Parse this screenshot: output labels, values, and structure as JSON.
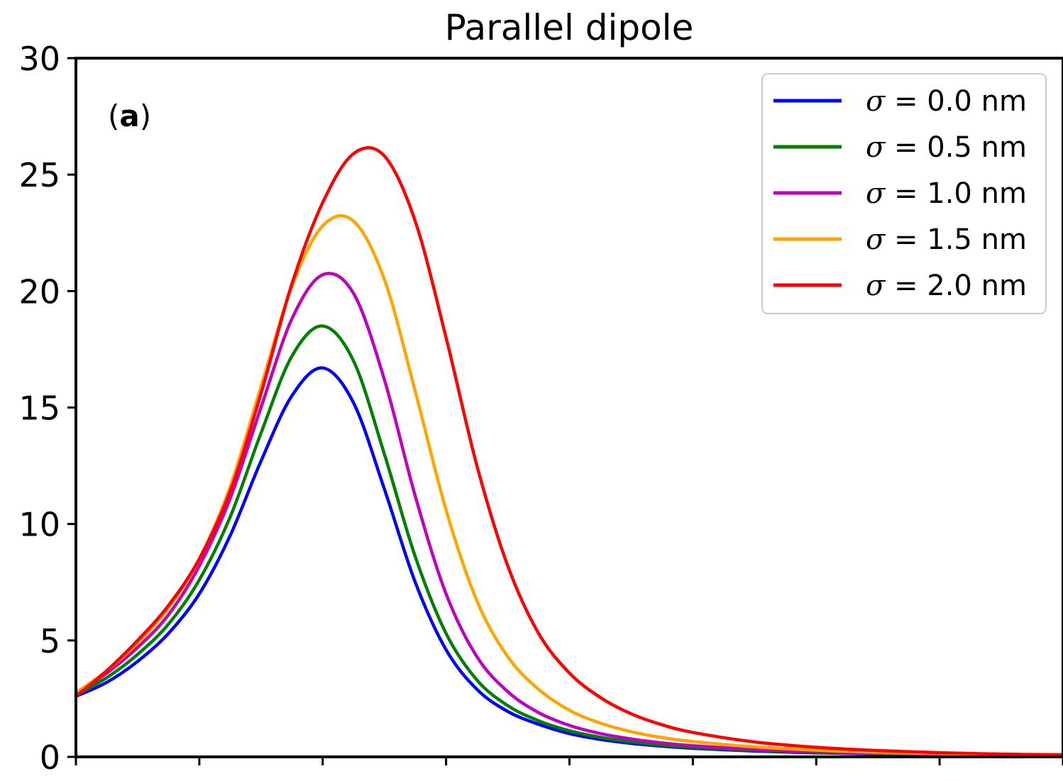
{
  "chart_data": {
    "type": "line",
    "title": "Parallel dipole",
    "xlabel": "",
    "ylabel": "",
    "panel_label": {
      "open": "(",
      "bold": "a",
      "close": ")"
    },
    "xlim": [
      0,
      8
    ],
    "ylim": [
      0,
      30
    ],
    "yticks": [
      0,
      5,
      10,
      15,
      20,
      25,
      30
    ],
    "xticks": [
      0,
      1,
      2,
      3,
      4,
      5,
      6,
      7,
      8
    ],
    "xtick_labels_visible": false,
    "grid": false,
    "legend_position": "top-right",
    "x": [
      0.0,
      0.25,
      0.5,
      0.75,
      1.0,
      1.25,
      1.5,
      1.75,
      2.0,
      2.25,
      2.5,
      2.75,
      3.0,
      3.25,
      3.5,
      3.75,
      4.0,
      4.25,
      4.5,
      4.75,
      5.0,
      5.5,
      6.0,
      6.5,
      7.0,
      7.5,
      8.0
    ],
    "series": [
      {
        "name": "σ = 0.0 nm",
        "sigma_symbol": "σ",
        "sigma_rest": " = 0.0 nm",
        "color": "#0000ff",
        "values": [
          2.6,
          3.2,
          4.1,
          5.3,
          7.0,
          9.5,
          12.7,
          15.5,
          16.7,
          15.2,
          11.5,
          7.5,
          4.6,
          2.9,
          1.95,
          1.4,
          1.0,
          0.75,
          0.58,
          0.46,
          0.37,
          0.25,
          0.17,
          0.12,
          0.09,
          0.07,
          0.05
        ]
      },
      {
        "name": "σ = 0.5 nm",
        "sigma_symbol": "σ",
        "sigma_rest": " = 0.5 nm",
        "color": "#008000",
        "values": [
          2.65,
          3.4,
          4.4,
          5.7,
          7.6,
          10.3,
          13.9,
          17.2,
          18.5,
          17.0,
          13.0,
          8.6,
          5.3,
          3.3,
          2.2,
          1.55,
          1.12,
          0.84,
          0.65,
          0.51,
          0.41,
          0.28,
          0.19,
          0.14,
          0.1,
          0.075,
          0.06
        ]
      },
      {
        "name": "σ = 1.0 nm",
        "sigma_symbol": "σ",
        "sigma_rest": " = 1.0 nm",
        "color": "#bf00bf",
        "values": [
          2.7,
          3.6,
          4.7,
          6.1,
          8.2,
          11.1,
          15.0,
          18.8,
          20.7,
          19.9,
          16.2,
          11.2,
          7.0,
          4.3,
          2.8,
          1.9,
          1.35,
          1.0,
          0.77,
          0.6,
          0.48,
          0.32,
          0.22,
          0.16,
          0.12,
          0.085,
          0.065
        ]
      },
      {
        "name": "σ = 1.5 nm",
        "sigma_symbol": "σ",
        "sigma_rest": " = 1.5 nm",
        "color": "#ffa500",
        "values": [
          2.75,
          3.7,
          4.9,
          6.4,
          8.5,
          11.6,
          15.9,
          20.2,
          22.8,
          23.0,
          20.5,
          15.7,
          10.6,
          6.7,
          4.3,
          2.9,
          2.0,
          1.45,
          1.08,
          0.83,
          0.66,
          0.43,
          0.29,
          0.2,
          0.14,
          0.1,
          0.08
        ]
      },
      {
        "name": "σ = 2.0 nm",
        "sigma_symbol": "σ",
        "sigma_rest": " = 2.0 nm",
        "color": "#ff0000",
        "values": [
          2.6,
          3.7,
          5.0,
          6.5,
          8.5,
          11.4,
          15.6,
          20.3,
          23.8,
          25.9,
          25.8,
          23.0,
          18.0,
          12.5,
          8.2,
          5.3,
          3.6,
          2.55,
          1.85,
          1.38,
          1.05,
          0.64,
          0.41,
          0.27,
          0.18,
          0.12,
          0.09
        ]
      }
    ]
  }
}
